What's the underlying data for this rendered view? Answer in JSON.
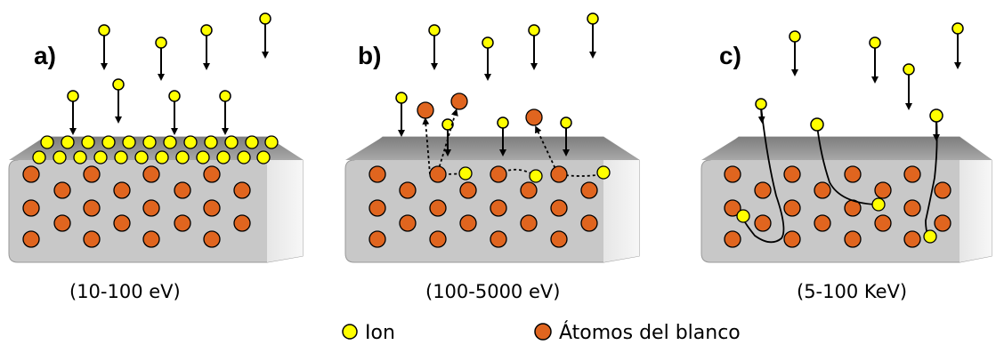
{
  "panels": [
    {
      "label": "a)",
      "range": "(10-100 eV)"
    },
    {
      "label": "b)",
      "range": "(100-5000 eV)"
    },
    {
      "label": "c)",
      "range": "(5-100 KeV)"
    }
  ],
  "legend": {
    "ion": "Ion",
    "atoms": "Átomos del blanco"
  },
  "colors": {
    "ion_fill": "#FFFF00",
    "atom_fill": "#E0651F",
    "block_front": "#C8C8C8",
    "block_top": "#8C8C8C",
    "block_side": "#E6E6E6"
  }
}
